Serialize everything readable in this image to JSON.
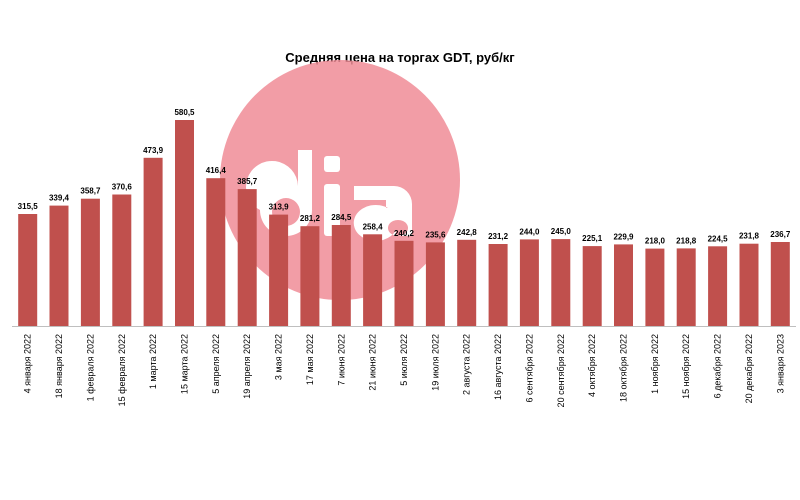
{
  "chart_data": {
    "type": "bar",
    "title": "Средняя цена на торгах GDT, руб/кг",
    "xlabel": "",
    "ylabel": "",
    "ylim": [
      0,
      620
    ],
    "grid": false,
    "legend": "none",
    "bar_color": "#c0504d",
    "categories": [
      "4 января 2022",
      "18 января 2022",
      "1 февраля 2022",
      "15 февраля 2022",
      "1 марта 2022",
      "15 марта 2022",
      "5 апреля 2022",
      "19 апреля 2022",
      "3 мая 2022",
      "17 мая 2022",
      "7 июня 2022",
      "21 июня 2022",
      "5 июля 2022",
      "19 июля 2022",
      "2 августа 2022",
      "16 августа 2022",
      "6 сентября 2022",
      "20 сентября 2022",
      "4 октября 2022",
      "18 октября 2022",
      "1 ноября 2022",
      "15 ноября 2022",
      "6 декабря 2022",
      "20 декабря 2022",
      "3 января 2023"
    ],
    "values": [
      315.5,
      339.4,
      358.7,
      370.6,
      473.9,
      580.5,
      416.4,
      385.7,
      313.9,
      281.2,
      284.5,
      258.4,
      240.2,
      235.6,
      242.8,
      231.2,
      244.0,
      245.0,
      225.1,
      229.9,
      218.0,
      218.8,
      224.5,
      231.8,
      236.7
    ],
    "value_labels": [
      "315,5",
      "339,4",
      "358,7",
      "370,6",
      "473,9",
      "580,5",
      "416,4",
      "385,7",
      "313,9",
      "281,2",
      "284,5",
      "258,4",
      "240,2",
      "235,6",
      "242,8",
      "231,2",
      "244,0",
      "245,0",
      "225,1",
      "229,9",
      "218,0",
      "218,8",
      "224,5",
      "231,8",
      "236,7"
    ]
  },
  "watermark": {
    "name": "dia-logo-watermark",
    "text": "dia",
    "color": "#f08c96"
  }
}
